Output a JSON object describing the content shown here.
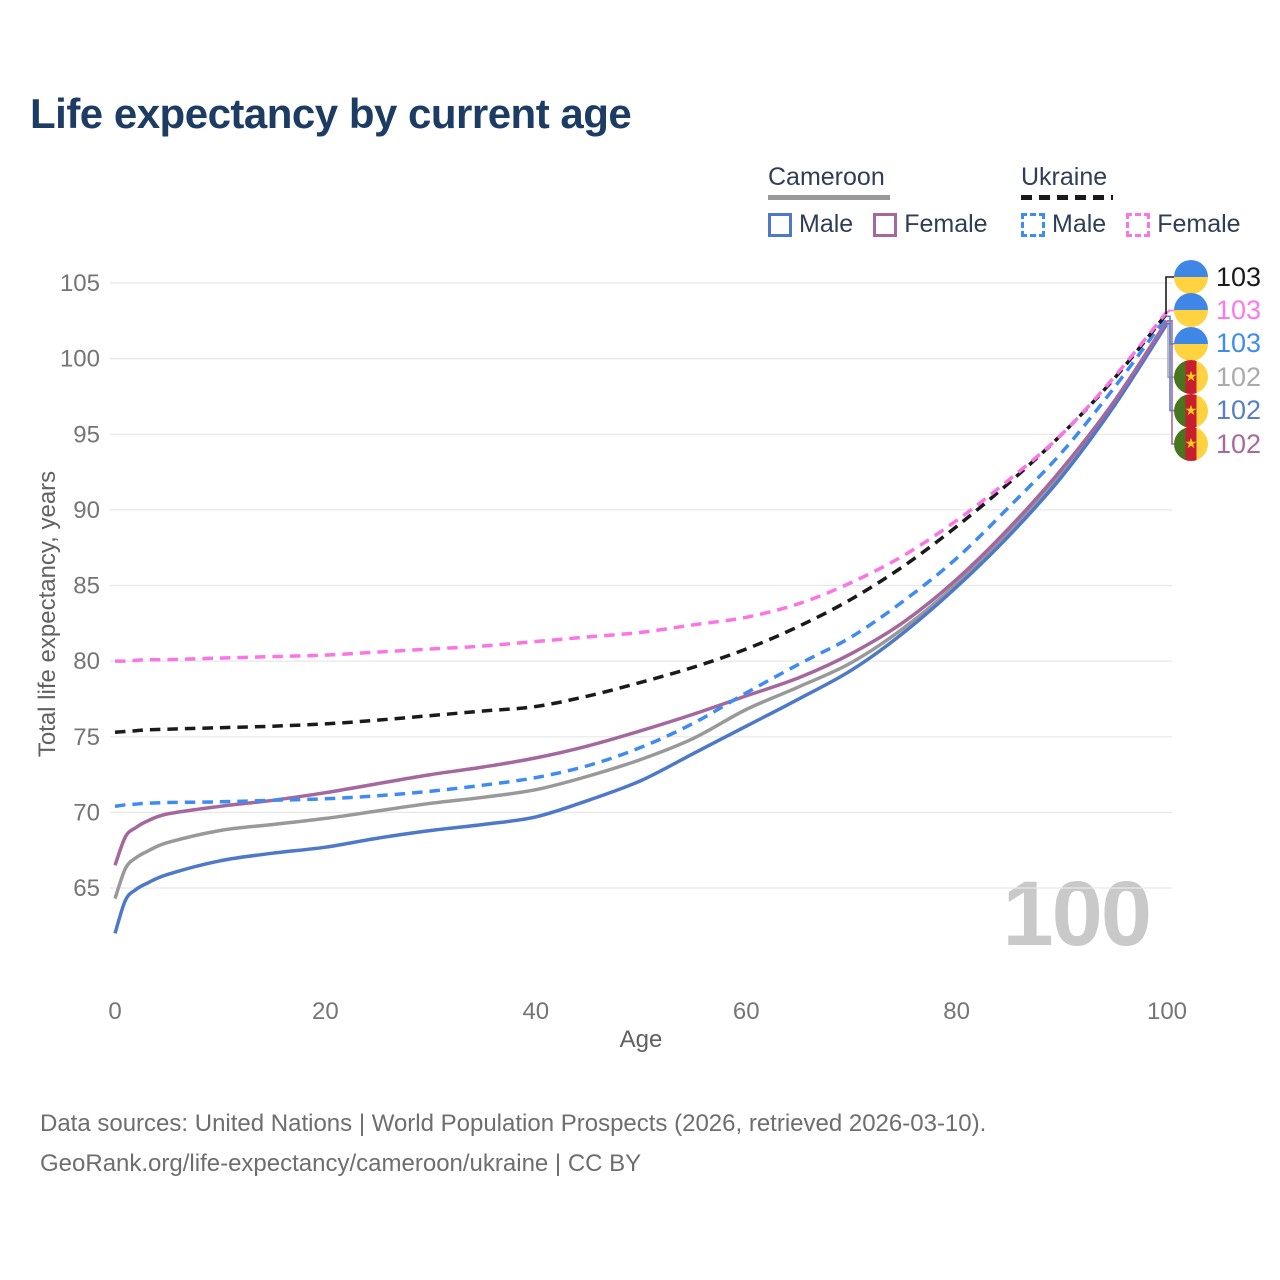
{
  "title": "Life expectancy by current age",
  "watermark": "100",
  "legend": {
    "groups": [
      {
        "name": "Cameroon",
        "line_style": "solid",
        "underline_color": "#999999",
        "items": [
          {
            "label": "Male",
            "color": "#4e79c8"
          },
          {
            "label": "Female",
            "color": "#a4689e"
          }
        ]
      },
      {
        "name": "Ukraine",
        "line_style": "dashed",
        "underline_color": "#1a1a1a",
        "items": [
          {
            "label": "Male",
            "color": "#3e8bf2"
          },
          {
            "label": "Female",
            "color": "#fb74e4"
          }
        ]
      }
    ]
  },
  "end_labels": [
    {
      "flag": "ukraine",
      "value": "103",
      "color": "#1a1a1a",
      "series": "ukraine_total"
    },
    {
      "flag": "ukraine",
      "value": "103",
      "color": "#ff77e8",
      "series": "ukraine_female"
    },
    {
      "flag": "ukraine",
      "value": "103",
      "color": "#3e8bf2",
      "series": "ukraine_male"
    },
    {
      "flag": "cameroon",
      "value": "102",
      "color": "#ababab",
      "series": "cameroon_total"
    },
    {
      "flag": "cameroon",
      "value": "102",
      "color": "#5580c6",
      "series": "cameroon_male"
    },
    {
      "flag": "cameroon",
      "value": "102",
      "color": "#a8699f",
      "series": "cameroon_female"
    }
  ],
  "footer": {
    "line1": "Data sources: United Nations | World Population Prospects (2026, retrieved 2026-03-10).",
    "line2": "GeoRank.org/life-expectancy/cameroon/ukraine | CC BY"
  },
  "colors": {
    "title": "#1d3c63",
    "axis_text": "#757575",
    "axis_title": "#616161",
    "grid": "#e7e7e7",
    "watermark": "#c9c9c9",
    "legend_text": "#2f3e56"
  },
  "chart_data": {
    "type": "line",
    "title": "Life expectancy by current age",
    "xlabel": "Age",
    "ylabel": "Total life expectancy, years",
    "xlim": [
      0,
      100
    ],
    "ylim": [
      62,
      105
    ],
    "xticks": [
      0,
      20,
      40,
      60,
      80,
      100
    ],
    "yticks": [
      65,
      70,
      75,
      80,
      85,
      90,
      95,
      100,
      105
    ],
    "grid": "horizontal",
    "legend_position": "top-right",
    "x": [
      0,
      1,
      2,
      3,
      5,
      10,
      15,
      20,
      25,
      30,
      35,
      40,
      45,
      50,
      55,
      60,
      65,
      70,
      75,
      80,
      85,
      90,
      95,
      100
    ],
    "series": [
      {
        "id": "cameroon_total",
        "name": "Cameroon Both sexes",
        "color": "#999999",
        "dash": false,
        "values": [
          64.3,
          66.3,
          67.0,
          67.4,
          68.0,
          68.8,
          69.2,
          69.6,
          70.1,
          70.6,
          71.0,
          71.5,
          72.4,
          73.5,
          74.9,
          76.8,
          78.3,
          79.9,
          82.2,
          85.1,
          88.6,
          92.5,
          97.1,
          102.4
        ]
      },
      {
        "id": "cameroon_male",
        "name": "Cameroon Male",
        "color": "#4e79c8",
        "dash": false,
        "values": [
          62.0,
          64.2,
          64.9,
          65.3,
          65.9,
          66.8,
          67.3,
          67.7,
          68.3,
          68.8,
          69.2,
          69.7,
          70.8,
          72.1,
          73.9,
          75.7,
          77.5,
          79.4,
          81.9,
          84.9,
          88.3,
          92.2,
          96.9,
          102.3
        ]
      },
      {
        "id": "cameroon_female",
        "name": "Cameroon Female",
        "color": "#a4689e",
        "dash": false,
        "values": [
          66.5,
          68.4,
          69.0,
          69.4,
          69.9,
          70.4,
          70.8,
          71.3,
          71.9,
          72.5,
          73.0,
          73.6,
          74.4,
          75.4,
          76.5,
          77.7,
          78.9,
          80.5,
          82.6,
          85.4,
          88.8,
          92.7,
          97.2,
          102.5
        ]
      },
      {
        "id": "ukraine_male",
        "name": "Ukraine Male",
        "color": "#3e8bf2",
        "dash": true,
        "values": [
          70.4,
          70.5,
          70.55,
          70.6,
          70.65,
          70.7,
          70.8,
          70.9,
          71.1,
          71.4,
          71.8,
          72.3,
          73.1,
          74.3,
          75.9,
          77.9,
          79.8,
          81.6,
          84.0,
          86.8,
          90.2,
          93.8,
          98.1,
          102.8
        ]
      },
      {
        "id": "ukraine_total",
        "name": "Ukraine Both sexes",
        "color": "#1a1a1a",
        "dash": true,
        "values": [
          75.3,
          75.35,
          75.4,
          75.45,
          75.5,
          75.6,
          75.7,
          75.85,
          76.1,
          76.4,
          76.7,
          77.0,
          77.7,
          78.6,
          79.6,
          80.8,
          82.3,
          84.1,
          86.3,
          88.9,
          91.8,
          95.0,
          98.7,
          103.0
        ]
      },
      {
        "id": "ukraine_female",
        "name": "Ukraine Female",
        "color": "#fb74e4",
        "dash": true,
        "values": [
          80.0,
          80.0,
          80.05,
          80.1,
          80.1,
          80.2,
          80.3,
          80.4,
          80.6,
          80.8,
          81.0,
          81.3,
          81.6,
          81.9,
          82.4,
          82.9,
          83.8,
          85.2,
          87.0,
          89.3,
          92.0,
          95.0,
          98.8,
          103.1
        ]
      }
    ]
  }
}
